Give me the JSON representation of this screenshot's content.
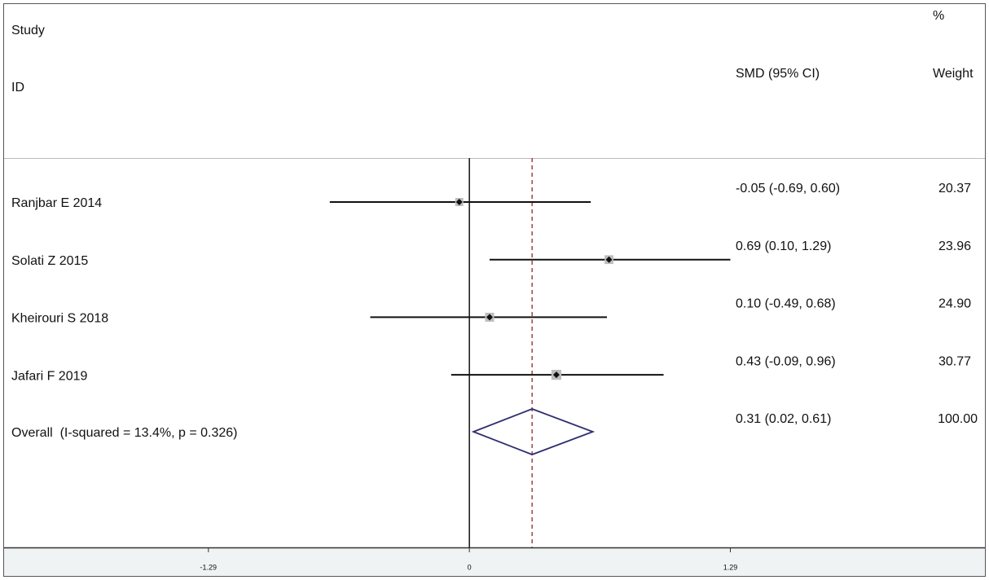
{
  "chart_data": {
    "type": "forest",
    "headers": {
      "study": "Study",
      "id": "ID",
      "effect": "SMD (95% CI)",
      "weight_top": "%",
      "weight": "Weight"
    },
    "studies": [
      "Ranjbar E 2014",
      "Solati Z 2015",
      "Kheirouri S 2018",
      "Jafari F 2019"
    ],
    "values": [
      -0.05,
      0.69,
      0.1,
      0.43
    ],
    "lower": [
      -0.69,
      0.1,
      -0.49,
      -0.09
    ],
    "upper": [
      0.6,
      1.29,
      0.68,
      0.96
    ],
    "value_labels": [
      "-0.05 (-0.69, 0.60)",
      "0.69 (0.10, 1.29)",
      "0.10 (-0.49, 0.68)",
      "0.43 (-0.09, 0.96)"
    ],
    "weights": [
      20.37,
      23.96,
      24.9,
      30.77
    ],
    "weight_labels": [
      "20.37",
      "23.96",
      "24.90",
      "30.77"
    ],
    "overall": {
      "label": "Overall  (I-squared = 13.4%, p = 0.326)",
      "value": 0.31,
      "lower": 0.02,
      "upper": 0.61,
      "value_label": "0.31 (0.02, 0.61)",
      "weight": 100,
      "weight_label": "100.00"
    },
    "xlim": [
      -2.3,
      2.5
    ],
    "xticks": [
      -1.29,
      0,
      1.29
    ],
    "colors": {
      "ci": "#111111",
      "box": "#bdbdbd",
      "diamond": "#2e2e6e",
      "overall_line": "#8b2a2a"
    }
  }
}
